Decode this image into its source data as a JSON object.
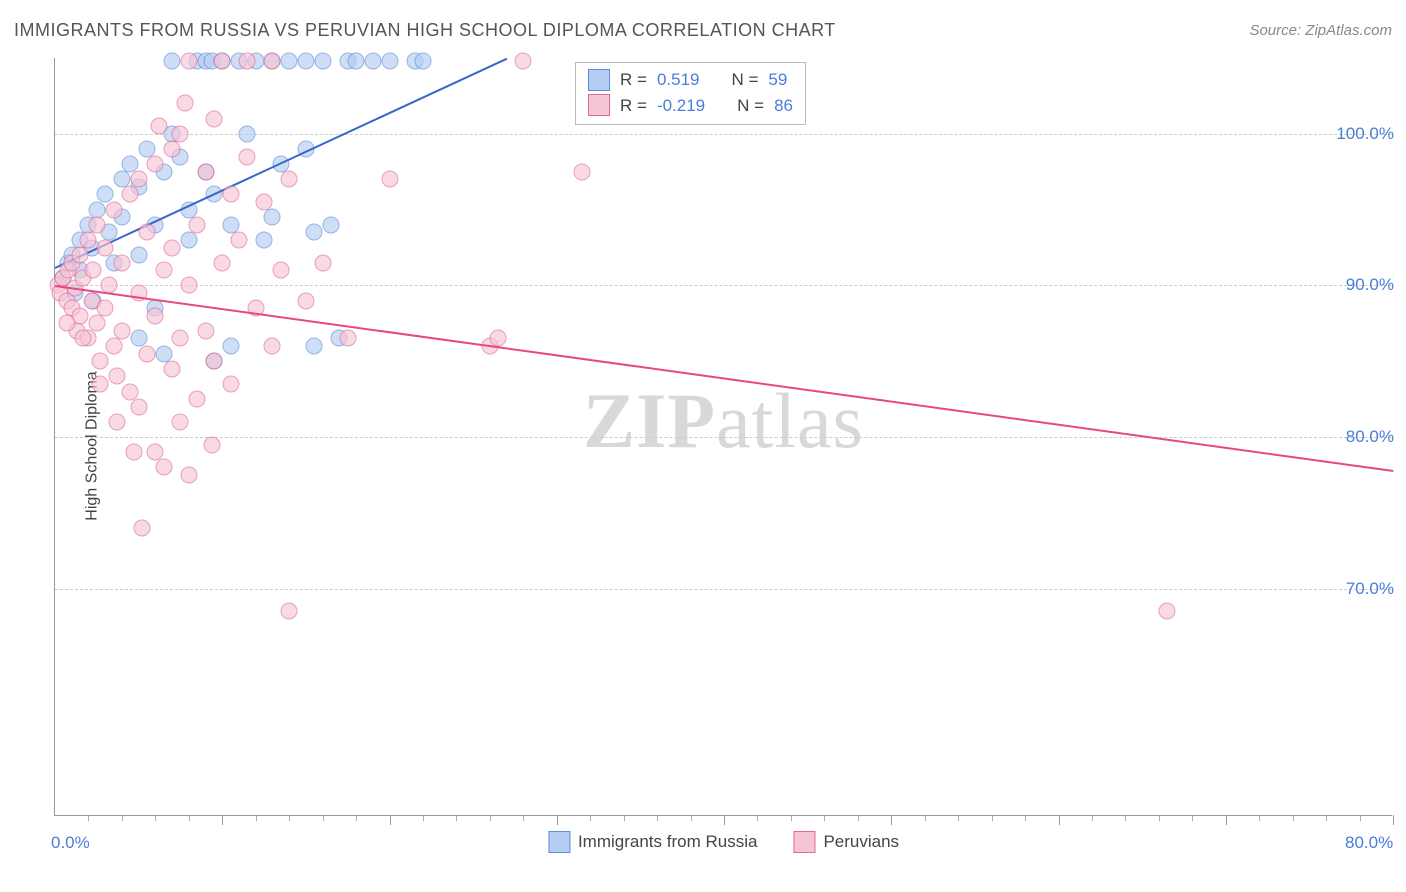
{
  "title": "IMMIGRANTS FROM RUSSIA VS PERUVIAN HIGH SCHOOL DIPLOMA CORRELATION CHART",
  "source": "Source: ZipAtlas.com",
  "ylabel": "High School Diploma",
  "watermark_zip": "ZIP",
  "watermark_atlas": "atlas",
  "chart": {
    "type": "scatter",
    "xlim": [
      0,
      80
    ],
    "ylim": [
      55,
      105
    ],
    "x_tick_minor_step": 2,
    "x_tick_major_step": 10,
    "x_ticks_labeled": [
      {
        "val": 0,
        "label": "0.0%"
      },
      {
        "val": 80,
        "label": "80.0%"
      }
    ],
    "y_ticks": [
      {
        "val": 70,
        "label": "70.0%"
      },
      {
        "val": 80,
        "label": "80.0%"
      },
      {
        "val": 90,
        "label": "90.0%"
      },
      {
        "val": 100,
        "label": "100.0%"
      }
    ],
    "grid_color": "#cccccc",
    "background_color": "#ffffff",
    "marker_size": 17,
    "series": [
      {
        "name": "Immigrants from Russia",
        "color_fill": "#b5cdf2",
        "color_border": "#5e8cd6",
        "r_label": "R =",
        "r_value": "0.519",
        "n_label": "N =",
        "n_value": "59",
        "trend": {
          "x1": 0,
          "y1": 91.2,
          "x2": 27,
          "y2": 105,
          "color": "#3667c9",
          "width": 2
        },
        "points": [
          [
            0.5,
            90.5
          ],
          [
            0.8,
            91.5
          ],
          [
            1.0,
            92.0
          ],
          [
            1.2,
            89.5
          ],
          [
            1.5,
            93.0
          ],
          [
            1.5,
            91.0
          ],
          [
            2.0,
            94.0
          ],
          [
            2.2,
            92.5
          ],
          [
            2.5,
            95.0
          ],
          [
            2.3,
            89.0
          ],
          [
            3.0,
            96.0
          ],
          [
            3.2,
            93.5
          ],
          [
            3.5,
            91.5
          ],
          [
            4.0,
            97.0
          ],
          [
            4.0,
            94.5
          ],
          [
            4.5,
            98.0
          ],
          [
            5.0,
            96.5
          ],
          [
            5.0,
            92.0
          ],
          [
            5.5,
            99.0
          ],
          [
            5.0,
            86.5
          ],
          [
            6.0,
            94.0
          ],
          [
            6.5,
            97.5
          ],
          [
            6.0,
            88.5
          ],
          [
            7.0,
            100.0
          ],
          [
            7.0,
            104.8
          ],
          [
            7.5,
            98.5
          ],
          [
            8.0,
            95.0
          ],
          [
            8.0,
            93.0
          ],
          [
            8.5,
            104.8
          ],
          [
            9.0,
            104.8
          ],
          [
            9.4,
            104.8
          ],
          [
            9.5,
            96.0
          ],
          [
            9.0,
            97.5
          ],
          [
            10.0,
            104.8
          ],
          [
            10.5,
            94.0
          ],
          [
            10.5,
            86.0
          ],
          [
            11.0,
            104.8
          ],
          [
            11.5,
            100.0
          ],
          [
            12.0,
            104.8
          ],
          [
            12.5,
            93.0
          ],
          [
            13.0,
            104.8
          ],
          [
            13.0,
            94.5
          ],
          [
            13.5,
            98.0
          ],
          [
            14.0,
            104.8
          ],
          [
            15.0,
            104.8
          ],
          [
            15.5,
            93.5
          ],
          [
            16.0,
            104.8
          ],
          [
            16.5,
            94.0
          ],
          [
            17.5,
            104.8
          ],
          [
            18.0,
            104.8
          ],
          [
            19.0,
            104.8
          ],
          [
            20.0,
            104.8
          ],
          [
            21.5,
            104.8
          ],
          [
            22.0,
            104.8
          ],
          [
            15.5,
            86.0
          ],
          [
            15.0,
            99.0
          ],
          [
            17.0,
            86.5
          ],
          [
            9.5,
            85.0
          ],
          [
            6.5,
            85.5
          ]
        ]
      },
      {
        "name": "Peruvians",
        "color_fill": "#f6c5d5",
        "color_border": "#e06a92",
        "r_label": "R =",
        "r_value": "-0.219",
        "n_label": "N =",
        "n_value": "86",
        "trend": {
          "x1": 0,
          "y1": 90.0,
          "x2": 80,
          "y2": 77.8,
          "color": "#e8497c",
          "width": 2
        },
        "points": [
          [
            0.2,
            90.0
          ],
          [
            0.3,
            89.5
          ],
          [
            0.5,
            90.5
          ],
          [
            0.7,
            89.0
          ],
          [
            0.8,
            91.0
          ],
          [
            1.0,
            88.5
          ],
          [
            1.0,
            91.5
          ],
          [
            1.2,
            89.8
          ],
          [
            1.3,
            87.0
          ],
          [
            1.5,
            92.0
          ],
          [
            1.5,
            88.0
          ],
          [
            1.7,
            90.5
          ],
          [
            2.0,
            86.5
          ],
          [
            2.0,
            93.0
          ],
          [
            2.2,
            89.0
          ],
          [
            2.3,
            91.0
          ],
          [
            2.5,
            87.5
          ],
          [
            2.5,
            94.0
          ],
          [
            2.7,
            85.0
          ],
          [
            3.0,
            92.5
          ],
          [
            3.0,
            88.5
          ],
          [
            3.2,
            90.0
          ],
          [
            3.5,
            86.0
          ],
          [
            3.5,
            95.0
          ],
          [
            3.7,
            84.0
          ],
          [
            4.0,
            91.5
          ],
          [
            4.0,
            87.0
          ],
          [
            4.5,
            96.0
          ],
          [
            4.5,
            83.0
          ],
          [
            5.0,
            89.5
          ],
          [
            5.0,
            97.0
          ],
          [
            5.0,
            82.0
          ],
          [
            5.5,
            93.5
          ],
          [
            5.5,
            85.5
          ],
          [
            5.2,
            74.0
          ],
          [
            6.0,
            98.0
          ],
          [
            6.0,
            88.0
          ],
          [
            6.0,
            79.0
          ],
          [
            6.5,
            91.0
          ],
          [
            6.5,
            78.0
          ],
          [
            7.0,
            92.5
          ],
          [
            7.0,
            99.0
          ],
          [
            7.0,
            84.5
          ],
          [
            7.5,
            100.0
          ],
          [
            7.5,
            86.5
          ],
          [
            7.5,
            81.0
          ],
          [
            8.0,
            104.8
          ],
          [
            8.0,
            90.0
          ],
          [
            8.0,
            77.5
          ],
          [
            8.5,
            94.0
          ],
          [
            8.5,
            82.5
          ],
          [
            9.0,
            97.5
          ],
          [
            9.0,
            87.0
          ],
          [
            9.5,
            101.0
          ],
          [
            9.5,
            85.0
          ],
          [
            9.4,
            79.5
          ],
          [
            10.0,
            104.8
          ],
          [
            10.0,
            91.5
          ],
          [
            10.5,
            96.0
          ],
          [
            10.5,
            83.5
          ],
          [
            11.0,
            93.0
          ],
          [
            11.5,
            98.5
          ],
          [
            12.0,
            88.5
          ],
          [
            12.5,
            95.5
          ],
          [
            13.0,
            86.0
          ],
          [
            13.5,
            91.0
          ],
          [
            14.0,
            68.5
          ],
          [
            14.0,
            97.0
          ],
          [
            15.0,
            89.0
          ],
          [
            16.0,
            91.5
          ],
          [
            17.5,
            86.5
          ],
          [
            20.0,
            97.0
          ],
          [
            26.0,
            86.0
          ],
          [
            26.5,
            86.5
          ],
          [
            31.5,
            97.5
          ],
          [
            28.0,
            104.8
          ],
          [
            66.5,
            68.5
          ],
          [
            4.7,
            79.0
          ],
          [
            3.7,
            81.0
          ],
          [
            2.7,
            83.5
          ],
          [
            1.7,
            86.5
          ],
          [
            0.7,
            87.5
          ],
          [
            6.2,
            100.5
          ],
          [
            7.8,
            102.0
          ],
          [
            11.5,
            104.8
          ],
          [
            13.0,
            104.8
          ]
        ]
      }
    ]
  },
  "legend": [
    {
      "label": "Immigrants from Russia",
      "fill": "#b5cdf2",
      "border": "#5e8cd6"
    },
    {
      "label": "Peruvians",
      "fill": "#f6c5d5",
      "border": "#e06a92"
    }
  ]
}
